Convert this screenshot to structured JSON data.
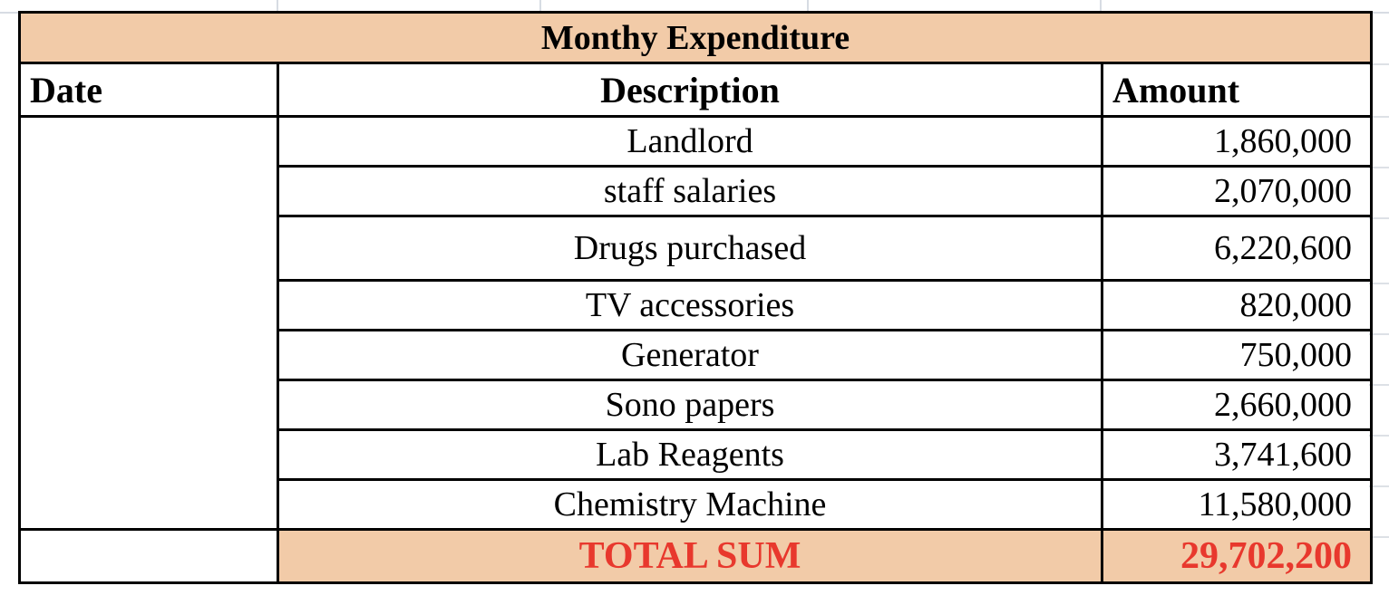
{
  "sheet": {
    "title": "Monthy Expenditure",
    "headers": {
      "date": "Date",
      "description": "Description",
      "amount": "Amount"
    },
    "rows": [
      {
        "description": "Landlord",
        "amount": "1,860,000"
      },
      {
        "description": "staff salaries",
        "amount": "2,070,000"
      },
      {
        "description": "Drugs purchased",
        "amount": "6,220,600"
      },
      {
        "description": "TV accessories",
        "amount": "820,000"
      },
      {
        "description": "Generator",
        "amount": "750,000"
      },
      {
        "description": "Sono papers",
        "amount": "2,660,000"
      },
      {
        "description": "Lab Reagents",
        "amount": "3,741,600"
      },
      {
        "description": "Chemistry Machine",
        "amount": "11,580,000"
      }
    ],
    "total": {
      "label": "TOTAL SUM",
      "amount": "29,702,200"
    }
  },
  "colors": {
    "header_fill": "#f2cba8",
    "total_text": "#e8382d",
    "gridline": "#d7dce3"
  }
}
